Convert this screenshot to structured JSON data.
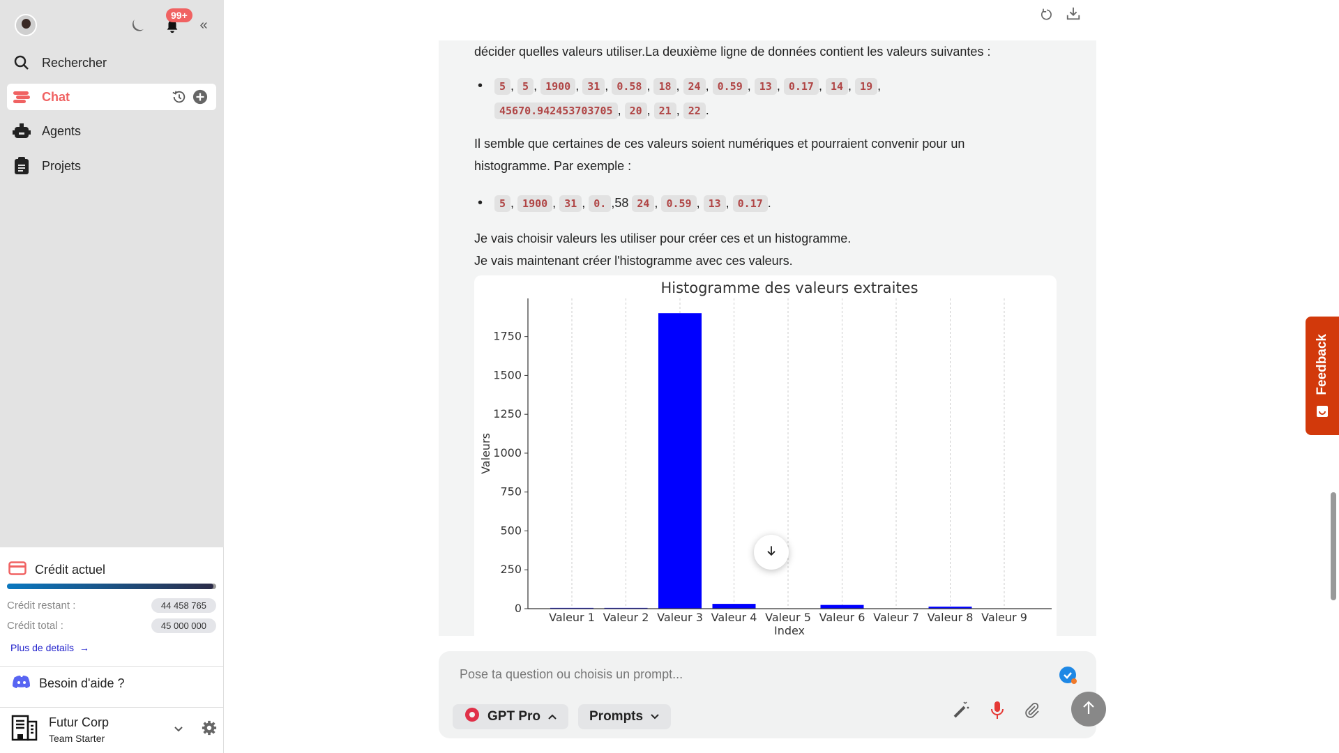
{
  "sidebar": {
    "notifications_badge": "99+",
    "nav": [
      {
        "label": "Rechercher",
        "icon": "search-icon"
      },
      {
        "label": "Chat",
        "icon": "chat-icon",
        "active": true
      },
      {
        "label": "Agents",
        "icon": "robot-icon"
      },
      {
        "label": "Projets",
        "icon": "clipboard-icon"
      }
    ],
    "credit": {
      "title": "Crédit actuel",
      "progress_fraction": 0.988,
      "remaining_label": "Crédit restant :",
      "remaining_value": "44 458 765",
      "total_label": "Crédit total :",
      "total_value": "45 000 000",
      "details_link": "Plus de details"
    },
    "help": "Besoin d'aide ?",
    "org": {
      "name": "Futur Corp",
      "plan": "Team Starter"
    }
  },
  "message": {
    "p1": "décider quelles valeurs utiliser.La deuxième ligne de données contient les valeurs suivantes :",
    "list1": [
      "5",
      "5",
      "1900",
      "31",
      "0.58",
      "18",
      "24",
      "0.59",
      "13",
      "0.17",
      "14",
      "19",
      "45670.942453703705",
      "20",
      "21",
      "22"
    ],
    "p2a": "Il semble que certaines de ces valeurs soient numériques et pourraient convenir pour un",
    "p2b": "histogramme. Par exemple :",
    "list2": [
      "5",
      "1900",
      "31",
      "0.",
      "24",
      "0.59",
      "13",
      "0.17"
    ],
    "list2_stray": ",58",
    "p3": "Je vais choisir valeurs les utiliser pour créer ces et un histogramme.",
    "p4": "Je vais maintenant créer l'histogramme avec ces valeurs."
  },
  "chart_data": {
    "type": "bar",
    "title": "Histogramme des valeurs extraites",
    "xlabel": "Index",
    "ylabel": "Valeurs",
    "categories": [
      "Valeur 1",
      "Valeur 2",
      "Valeur 3",
      "Valeur 4",
      "Valeur 5",
      "Valeur 6",
      "Valeur 7",
      "Valeur 8",
      "Valeur 9"
    ],
    "values": [
      5,
      5,
      1900,
      31,
      0.58,
      24,
      0.59,
      13,
      0.17
    ],
    "yticks": [
      0,
      250,
      500,
      750,
      1000,
      1250,
      1500,
      1750
    ],
    "ylim": [
      0,
      1995
    ],
    "grid": "vertical dashed",
    "bar_color": "#0000ff"
  },
  "composer": {
    "placeholder": "Pose ta question ou choisis un prompt...",
    "model": "GPT Pro",
    "prompts": "Prompts"
  },
  "feedback": "Feedback",
  "colors": {
    "accent": "#f06262",
    "feedback": "#d2390b",
    "link": "#2222cc"
  }
}
